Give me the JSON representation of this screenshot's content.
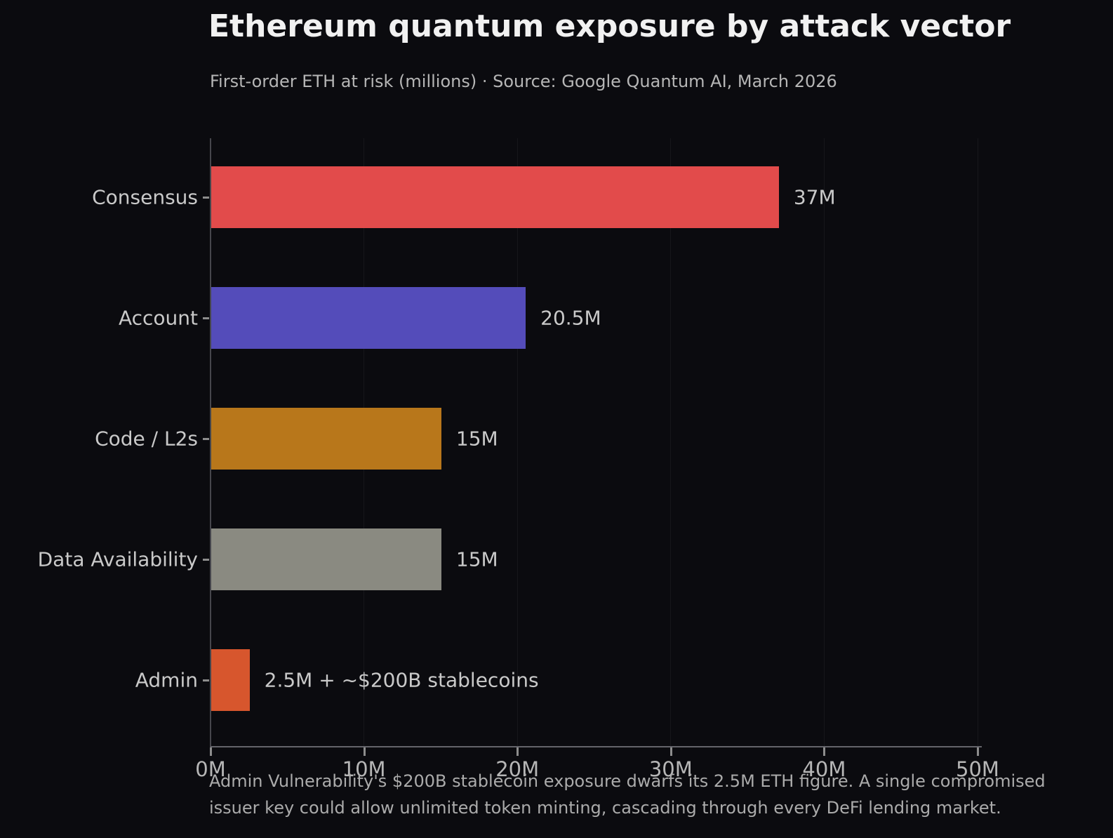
{
  "title": "Ethereum quantum exposure by attack vector",
  "subtitle": "First-order ETH at risk (millions)  ·  Source: Google Quantum AI, March 2026",
  "chart_data": {
    "type": "bar",
    "orientation": "horizontal",
    "title": "Ethereum quantum exposure by attack vector",
    "subtitle": "First-order ETH at risk (millions) · Source: Google Quantum AI, March 2026",
    "categories": [
      "Consensus",
      "Account",
      "Code / L2s",
      "Data Availability",
      "Admin"
    ],
    "values": [
      37,
      20.5,
      15,
      15,
      2.5
    ],
    "value_labels": [
      "37M",
      "20.5M",
      "15M",
      "15M",
      "2.5M + ~$200B stablecoins"
    ],
    "bar_colors": [
      "#e24b4b",
      "#544cba",
      "#b8771b",
      "#8a8a81",
      "#d7562d"
    ],
    "xlim": [
      0,
      50
    ],
    "x_tick_values": [
      0,
      10,
      20,
      30,
      40,
      50
    ],
    "x_tick_labels": [
      "0M",
      "10M",
      "20M",
      "30M",
      "40M",
      "50M"
    ],
    "xlabel": "",
    "ylabel": "",
    "grid": "faint-vertical",
    "legend": "none"
  },
  "footer": {
    "lines": [
      "Admin Vulnerability's $200B stablecoin exposure dwarfs its 2.5M ETH figure. A single compromised",
      "issuer key could allow unlimited token minting, cascading through every DeFi lending market."
    ]
  },
  "colors": {
    "background": "#0b0b0f",
    "title_text": "#f1f1f1",
    "subtitle_text": "#b6b6b6",
    "label_text": "#c9c9c9",
    "tick_text": "#b6b6b6",
    "footer_text": "#ababab",
    "axis_line": "#63636a",
    "grid_line": "rgba(255,255,255,0.05)"
  }
}
